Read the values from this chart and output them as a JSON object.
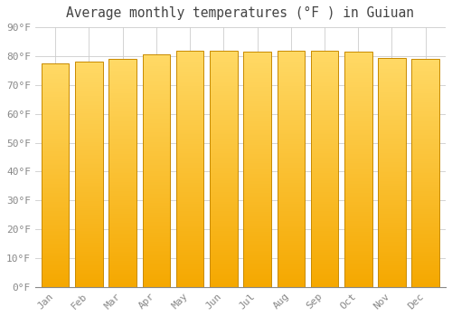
{
  "title": "Average monthly temperatures (°F ) in Guiuan",
  "months": [
    "Jan",
    "Feb",
    "Mar",
    "Apr",
    "May",
    "Jun",
    "Jul",
    "Aug",
    "Sep",
    "Oct",
    "Nov",
    "Dec"
  ],
  "values": [
    77.5,
    78.0,
    79.0,
    80.5,
    82.0,
    82.0,
    81.5,
    82.0,
    82.0,
    81.5,
    79.5,
    79.0
  ],
  "bar_color_bottom": "#F5A800",
  "bar_color_top": "#FFD966",
  "bar_edge_color": "#C88A00",
  "background_color": "#FFFFFF",
  "plot_bg_color": "#FFFFFF",
  "grid_color": "#CCCCCC",
  "text_color": "#888888",
  "title_color": "#444444",
  "ylim": [
    0,
    90
  ],
  "ytick_step": 10,
  "title_fontsize": 10.5,
  "tick_fontsize": 8
}
